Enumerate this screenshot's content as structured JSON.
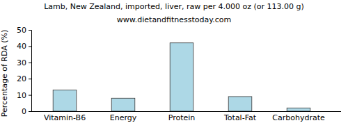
{
  "chart_data": {
    "type": "bar",
    "title": "Lamb, New Zealand, imported, liver, raw per 4.000 oz (or 113.00 g)",
    "subtitle": "www.dietandfitnesstoday.com",
    "y_label": "Percentage of RDA (%)",
    "categories": [
      "Vitamin-B6",
      "Energy",
      "Protein",
      "Total-Fat",
      "Carbohydrate"
    ],
    "values": [
      13,
      8,
      42,
      9,
      2
    ],
    "color": "#add8e6",
    "ylim": [
      0,
      50
    ],
    "yticks": [
      0,
      10,
      20,
      30,
      40,
      50
    ],
    "grid": false
  }
}
